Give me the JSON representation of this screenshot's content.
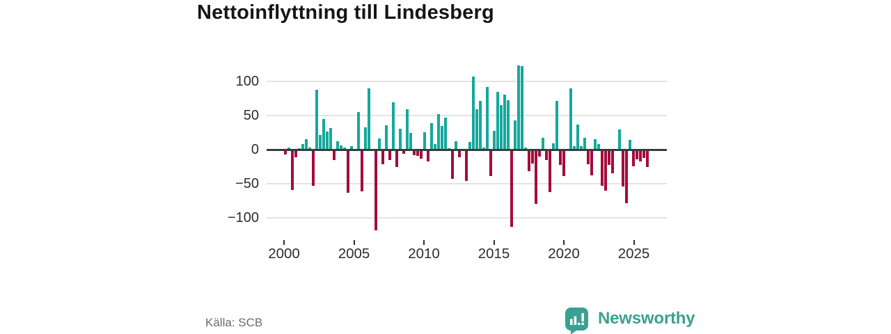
{
  "title": "Nettoinflyttning till Lindesberg",
  "source": "Källa: SCB",
  "brand": {
    "name": "Newsworthy",
    "color": "#3AA092"
  },
  "colors": {
    "positive": "#16A89C",
    "negative": "#A50A3C",
    "grid": "#e4e4e4",
    "axis": "#3b3b3b",
    "title_text": "#151515",
    "tick_text": "#2d2d2d",
    "source_text": "#6b6b6b"
  },
  "chart_data": {
    "type": "bar",
    "title": "Nettoinflyttning till Lindesberg",
    "xlabel": "",
    "ylabel": "",
    "legend": "none",
    "grid": "horizontal",
    "frequency": "quarterly",
    "start_year": 2000,
    "start_quarter": 1,
    "x_tick_labels": [
      "2000",
      "2005",
      "2010",
      "2015",
      "2020",
      "2025"
    ],
    "x_tick_years": [
      2000,
      2005,
      2010,
      2015,
      2020,
      2025
    ],
    "y_tick_labels": [
      "100",
      "50",
      "0",
      "−50",
      "−100"
    ],
    "y_ticks": [
      100,
      50,
      0,
      -50,
      -100
    ],
    "ylim": [
      -125,
      127
    ],
    "positive_color": "#16A89C",
    "negative_color": "#A50A3C",
    "values": [
      -6,
      3,
      -58,
      -10,
      2,
      8,
      15,
      3,
      -52,
      88,
      21,
      45,
      27,
      32,
      -14,
      12,
      6,
      3,
      -62,
      5,
      0,
      55,
      -60,
      33,
      90,
      0,
      -117,
      16,
      -20,
      36,
      -14,
      69,
      -24,
      31,
      -5,
      59,
      25,
      -7,
      -8,
      -12,
      26,
      -16,
      39,
      8,
      52,
      35,
      47,
      2,
      -42,
      12,
      -10,
      0,
      -45,
      11,
      107,
      59,
      71,
      3,
      92,
      -38,
      28,
      85,
      65,
      81,
      72,
      -112,
      43,
      123,
      122,
      3,
      -31,
      -19,
      -79,
      -9,
      17,
      -14,
      -61,
      9,
      71,
      -21,
      -38,
      0,
      90,
      5,
      37,
      5,
      17,
      -20,
      -37,
      15,
      8,
      -52,
      -59,
      -21,
      -34,
      0,
      30,
      -53,
      -78,
      14,
      -23,
      -13,
      -16,
      -11,
      -24
    ]
  }
}
